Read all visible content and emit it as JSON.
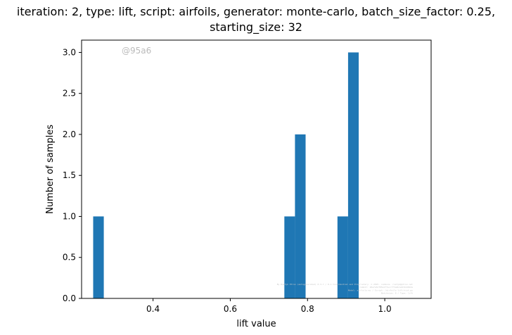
{
  "chart_data": {
    "type": "bar",
    "title_lines": [
      "iteration: 2, type: lift, script: airfoils, generator: monte-carlo, batch_size_factor: 0.25,",
      "starting_size: 32"
    ],
    "xlabel": "lift value",
    "ylabel": "Number of samples",
    "xlim": [
      0.215,
      1.12
    ],
    "ylim": [
      0,
      3.15
    ],
    "xticks": [
      {
        "value": 0.4,
        "label": "0.4"
      },
      {
        "value": 0.6,
        "label": "0.6"
      },
      {
        "value": 0.8,
        "label": "0.8"
      },
      {
        "value": 1.0,
        "label": "1.0"
      }
    ],
    "yticks": [
      {
        "value": 0.0,
        "label": "0.0"
      },
      {
        "value": 0.5,
        "label": "0.5"
      },
      {
        "value": 1.0,
        "label": "1.0"
      },
      {
        "value": 1.5,
        "label": "1.5"
      },
      {
        "value": 2.0,
        "label": "2.0"
      },
      {
        "value": 2.5,
        "label": "2.5"
      },
      {
        "value": 3.0,
        "label": "3.0"
      }
    ],
    "bins": [
      {
        "x0": 0.245,
        "x1": 0.2725,
        "count": 1
      },
      {
        "x0": 0.74,
        "x1": 0.7675,
        "count": 1
      },
      {
        "x0": 0.7675,
        "x1": 0.795,
        "count": 2
      },
      {
        "x0": 0.8775,
        "x1": 0.905,
        "count": 1
      },
      {
        "x0": 0.905,
        "x1": 0.9325,
        "count": 3
      }
    ],
    "bar_color": "#1f77b4",
    "grid": false,
    "watermark": "@95a6",
    "footnote_lines": [
      "By Rostyk Ptrsn (autogenerated) 0.3.7 / 0.1 Confidential and Proprietary. © 2025. commons. rostyk@ptrsn.net",
      "Commit: 20a7e5df05a1f7ecc7f3a2b1e0c94d0b3a",
      "Model: airfoils-mc / Script: /airfoils-lift-hist.py",
      "Batchsize: 8 / Type: lift"
    ]
  }
}
